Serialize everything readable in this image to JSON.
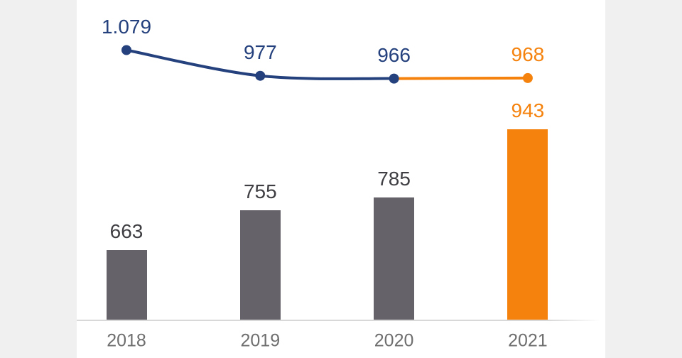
{
  "chart_data": {
    "type": "bar",
    "subtype": "combo-bar-line",
    "title": "",
    "xlabel": "",
    "ylabel": "",
    "legend": "none",
    "grid": "off",
    "categories": [
      "2018",
      "2019",
      "2020",
      "2021"
    ],
    "bar_series": {
      "name": "bar-values",
      "values": [
        663,
        755,
        785,
        943
      ],
      "labels": [
        "663",
        "755",
        "785",
        "943"
      ],
      "baseline_value_hint": 500
    },
    "line_series": {
      "name": "line-values",
      "values": [
        1079,
        977,
        966,
        968
      ],
      "labels": [
        "1.079",
        "977",
        "966",
        "968"
      ]
    },
    "highlight_category": "2021",
    "colors": {
      "bar": "#656369",
      "bar_highlight": "#F5820D",
      "line": "#24407D",
      "line_highlight": "#F5820D",
      "bar_label": "#3F3F43",
      "line_label": "#24407D",
      "line_label_highlight": "#F5820D",
      "tick_label": "#6E6E6E",
      "axis_line": "#D8D8D8",
      "side_panel": "#F0F0F1",
      "background": "#FFFFFF"
    }
  }
}
